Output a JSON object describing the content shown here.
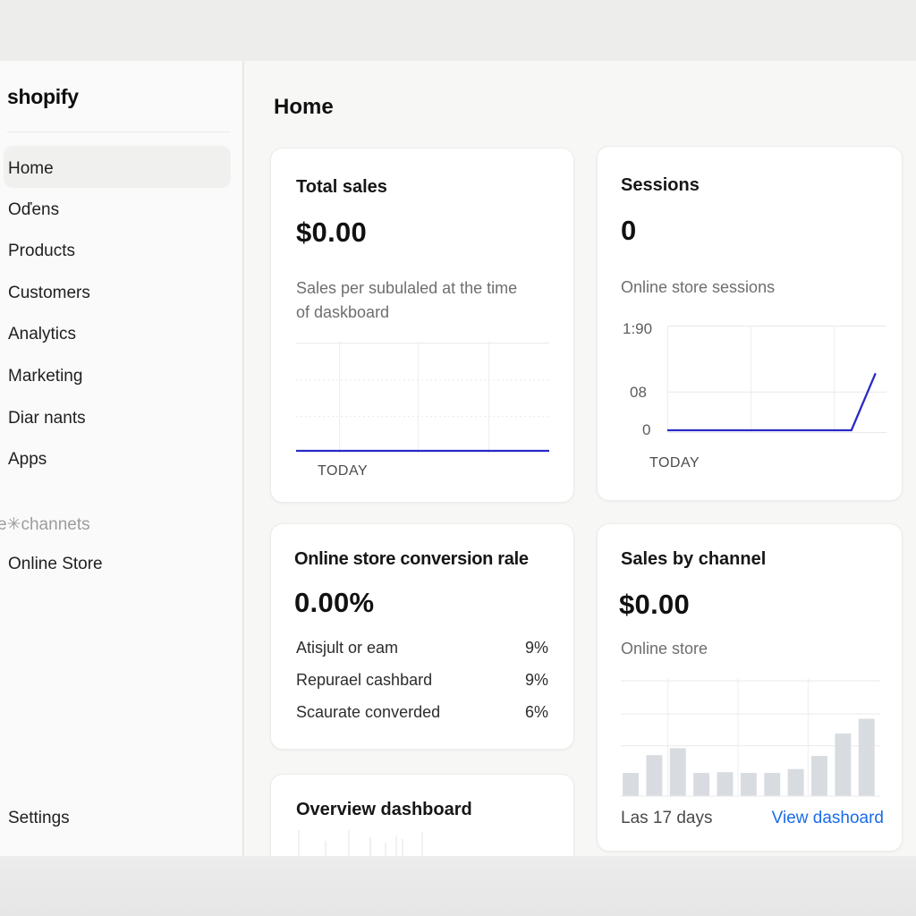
{
  "colors": {
    "line_blue": "#2a2ac6",
    "link_blue": "#1a6ce8",
    "bar_gray": "#d8dce0",
    "active_item_bg": "#f0f0ef"
  },
  "sidebar": {
    "logo": "shopify",
    "items": [
      {
        "label": "Home",
        "active": true
      },
      {
        "label": "Oďens",
        "active": false
      },
      {
        "label": "Products",
        "active": false
      },
      {
        "label": "Customers",
        "active": false
      },
      {
        "label": "Analytics",
        "active": false
      },
      {
        "label": "Marketing",
        "active": false
      },
      {
        "label": "Diar nants",
        "active": false
      },
      {
        "label": "Apps",
        "active": false
      }
    ],
    "section_label": "e✳channets",
    "channels": [
      {
        "label": "Online Store"
      }
    ],
    "settings_label": "Settings"
  },
  "header": {
    "title": "Home"
  },
  "cards": {
    "total_sales": {
      "title": "Total sales",
      "value": "$0.00",
      "subtitle": "Sales per subulaled at the time of daskboard"
    },
    "sessions": {
      "title": "Sessions",
      "value": "0",
      "subtitle": "Online store sessions"
    },
    "conversion": {
      "title": "Online store conversion rale",
      "value": "0.00%",
      "rows": [
        {
          "label": "Atisjult or eam",
          "value": "9%"
        },
        {
          "label": "Repurael cashbard",
          "value": "9%"
        },
        {
          "label": "Scaurate converded",
          "value": "6%"
        }
      ]
    },
    "sales_by_channel": {
      "title": "Sales by channel",
      "value": "$0.00",
      "subtitle": "Online store",
      "footer_left": "Las 17 days",
      "footer_link": "View dashoard"
    },
    "overview": {
      "title": "Overview dashboard"
    }
  },
  "chart_data": [
    {
      "type": "line",
      "title": "Total sales",
      "x_label": "TODAY",
      "series": [
        {
          "name": "Total sales",
          "points": [
            [
              0,
              0
            ],
            [
              100,
              0
            ]
          ]
        }
      ],
      "ylim": [
        0,
        1
      ],
      "line_color": "#2a2ac6",
      "legend": "none",
      "grid": {
        "vlines_pct": [
          17,
          48,
          76
        ],
        "hlines_pct": [
          1,
          34,
          67
        ],
        "dash_from": 1
      }
    },
    {
      "type": "line",
      "title": "Sessions",
      "x_label": "TODAY",
      "y_ticks": [
        "1:90",
        "08",
        "0"
      ],
      "series": [
        {
          "name": "Online store sessions",
          "points": [
            [
              0,
              0
            ],
            [
              84,
              0
            ],
            [
              95,
              110
            ]
          ]
        }
      ],
      "ylim": [
        0,
        190
      ],
      "line_color": "#2a2ac6",
      "legend": "none",
      "grid": {
        "vlines_pct": [
          0,
          38,
          76
        ],
        "hlines_pct": [
          0,
          62,
          100
        ]
      }
    },
    {
      "type": "bar",
      "title": "Sales by channel",
      "values": [
        30,
        53,
        62,
        30,
        31,
        30,
        30,
        35,
        52,
        81,
        100
      ],
      "ylim": [
        0,
        148
      ],
      "bar_color": "#d8dce0",
      "legend": "none",
      "grid": {
        "vlines_pct": [
          18,
          45,
          72
        ],
        "hlines_pct": [
          2,
          30,
          57
        ]
      }
    }
  ]
}
